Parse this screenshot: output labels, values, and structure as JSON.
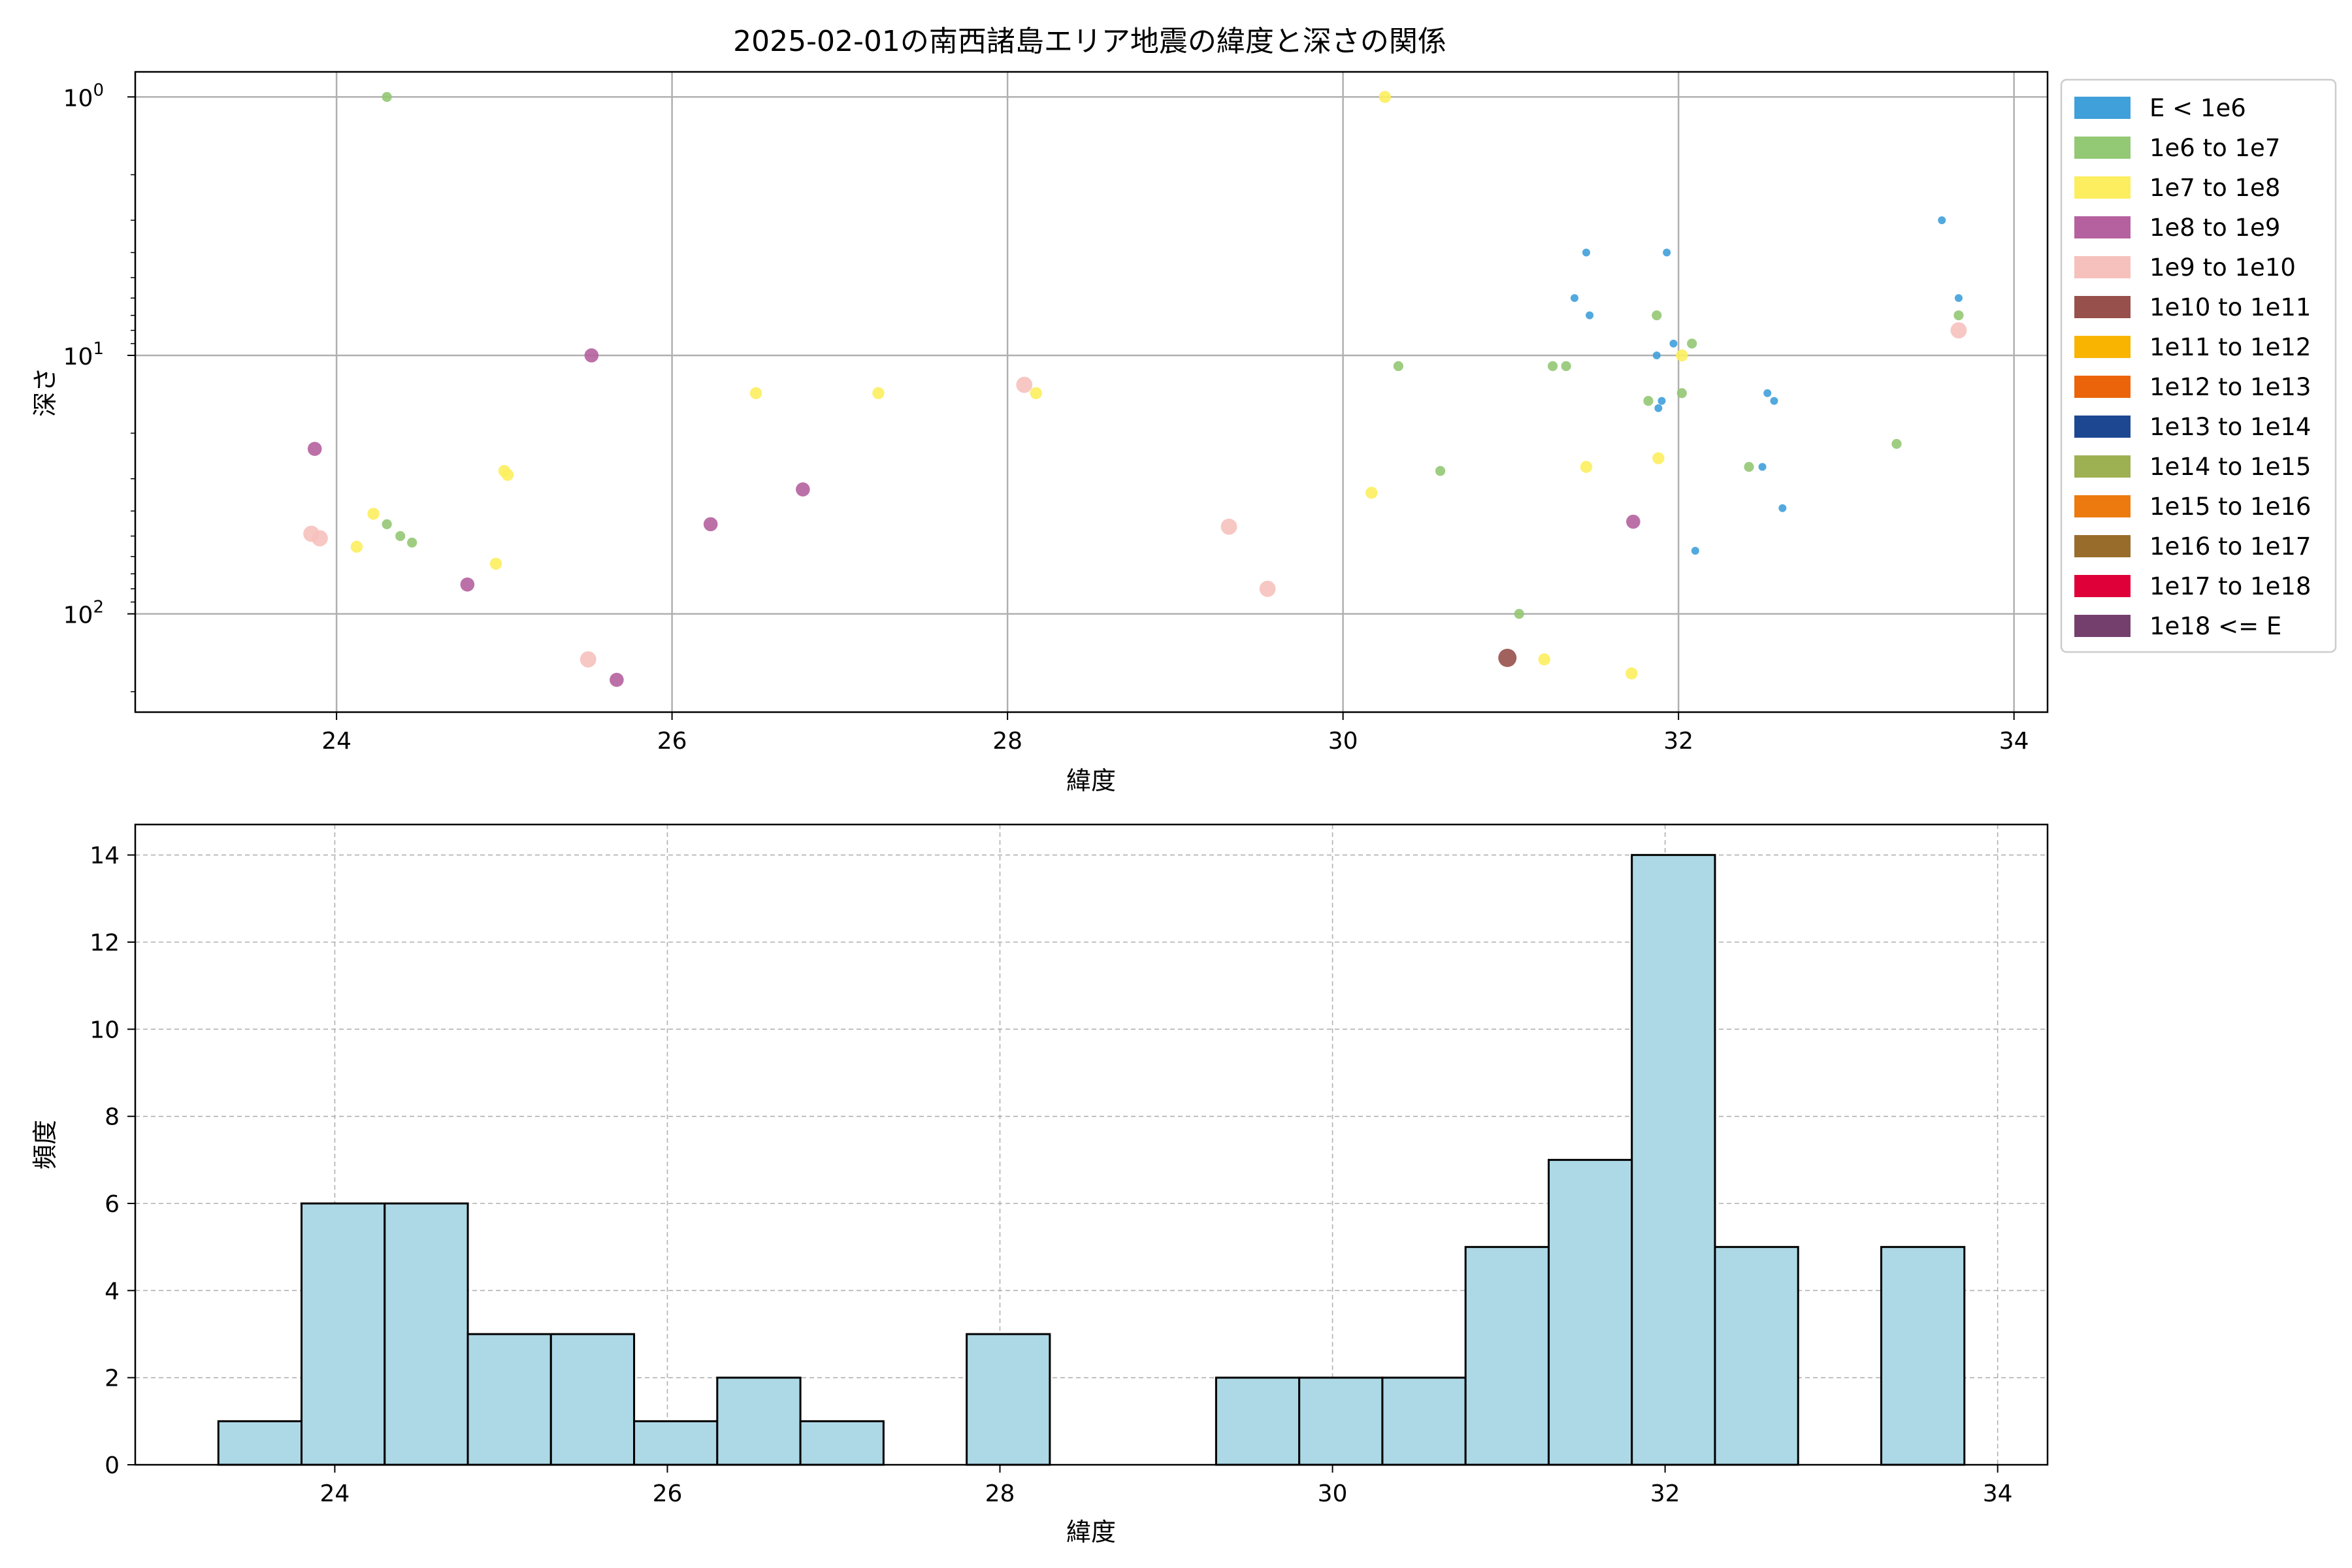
{
  "figure": {
    "title": "2025-02-01の南西諸島エリア地震の緯度と深さの関係"
  },
  "chart_data": [
    {
      "type": "scatter",
      "title": "2025-02-01の南西諸島エリア地震の緯度と深さの関係",
      "xlabel": "緯度",
      "ylabel": "深さ",
      "xlim": [
        22.8,
        34.2
      ],
      "ylim": [
        240,
        0.8
      ],
      "yscale": "log",
      "y_inverted": true,
      "grid": true,
      "xticks": [
        "24",
        "26",
        "28",
        "30",
        "32",
        "34"
      ],
      "yticks": [
        {
          "value": 1,
          "base": "10",
          "exp": "0"
        },
        {
          "value": 10,
          "base": "10",
          "exp": "1"
        },
        {
          "value": 100,
          "base": "10",
          "exp": "2"
        }
      ],
      "legend": {
        "position": "outside-right",
        "entries": [
          {
            "label": "E < 1e6",
            "color": "#3fa0da"
          },
          {
            "label": "1e6 to 1e7",
            "color": "#93c874"
          },
          {
            "label": "1e7 to 1e8",
            "color": "#fcee5e"
          },
          {
            "label": "1e8 to 1e9",
            "color": "#b5619f"
          },
          {
            "label": "1e9 to 1e10",
            "color": "#f6c1bc"
          },
          {
            "label": "1e10 to 1e11",
            "color": "#97504b"
          },
          {
            "label": "1e11 to 1e12",
            "color": "#f8b400"
          },
          {
            "label": "1e12 to 1e13",
            "color": "#ec6409"
          },
          {
            "label": "1e13 to 1e14",
            "color": "#1d4891"
          },
          {
            "label": "1e14 to 1e15",
            "color": "#9db052"
          },
          {
            "label": "1e15 to 1e16",
            "color": "#ec7a0e"
          },
          {
            "label": "1e16 to 1e17",
            "color": "#986c2b"
          },
          {
            "label": "1e17 to 1e18",
            "color": "#df0039"
          },
          {
            "label": "1e18 <= E",
            "color": "#753f6d"
          }
        ]
      },
      "series": [
        {
          "class": 0,
          "points": [
            [
              31.45,
              4
            ],
            [
              31.38,
              6
            ],
            [
              31.47,
              7
            ],
            [
              31.93,
              4
            ],
            [
              31.97,
              9
            ],
            [
              31.87,
              10
            ],
            [
              31.9,
              15
            ],
            [
              31.88,
              16
            ],
            [
              32.53,
              14
            ],
            [
              32.57,
              15
            ],
            [
              32.5,
              27
            ],
            [
              32.62,
              39
            ],
            [
              32.1,
              57
            ],
            [
              33.57,
              3
            ],
            [
              33.67,
              6
            ]
          ]
        },
        {
          "class": 1,
          "points": [
            [
              24.3,
              1
            ],
            [
              24.3,
              45
            ],
            [
              24.38,
              50
            ],
            [
              24.45,
              53
            ],
            [
              30.33,
              11
            ],
            [
              30.58,
              28
            ],
            [
              31.25,
              11
            ],
            [
              31.33,
              11
            ],
            [
              31.87,
              7
            ],
            [
              32.08,
              9
            ],
            [
              32.02,
              14
            ],
            [
              31.82,
              15
            ],
            [
              31.05,
              100
            ],
            [
              32.42,
              27
            ],
            [
              33.3,
              22
            ],
            [
              33.67,
              7
            ]
          ]
        },
        {
          "class": 2,
          "points": [
            [
              30.25,
              1
            ],
            [
              24.22,
              41
            ],
            [
              24.12,
              55
            ],
            [
              24.95,
              64
            ],
            [
              25.0,
              28
            ],
            [
              25.02,
              29
            ],
            [
              26.5,
              14
            ],
            [
              27.23,
              14
            ],
            [
              28.17,
              14
            ],
            [
              30.17,
              34
            ],
            [
              31.45,
              27
            ],
            [
              31.88,
              25
            ],
            [
              32.02,
              10
            ],
            [
              31.2,
              150
            ],
            [
              31.72,
              170
            ]
          ]
        },
        {
          "class": 3,
          "points": [
            [
              23.87,
              23
            ],
            [
              24.78,
              77
            ],
            [
              25.52,
              10
            ],
            [
              25.67,
              180
            ],
            [
              26.23,
              45
            ],
            [
              26.78,
              33
            ],
            [
              31.73,
              44
            ]
          ]
        },
        {
          "class": 4,
          "points": [
            [
              23.85,
              49
            ],
            [
              23.9,
              51
            ],
            [
              25.5,
              150
            ],
            [
              28.1,
              13
            ],
            [
              29.32,
              46
            ],
            [
              29.55,
              80
            ],
            [
              33.67,
              8
            ]
          ]
        },
        {
          "class": 5,
          "points": [
            [
              30.98,
              148
            ]
          ]
        }
      ]
    },
    {
      "type": "bar",
      "subtype": "histogram",
      "xlabel": "緯度",
      "ylabel": "頻度",
      "xlim": [
        22.8,
        34.3
      ],
      "ylim": [
        0,
        14.7
      ],
      "grid": true,
      "bar_color": "#add8e6",
      "xticks": [
        "24",
        "26",
        "28",
        "30",
        "32",
        "34"
      ],
      "yticks": [
        "0",
        "2",
        "4",
        "6",
        "8",
        "10",
        "12",
        "14"
      ],
      "bins": [
        {
          "x0": 23.3,
          "x1": 23.8,
          "count": 1
        },
        {
          "x0": 23.8,
          "x1": 24.3,
          "count": 6
        },
        {
          "x0": 24.3,
          "x1": 24.8,
          "count": 6
        },
        {
          "x0": 24.8,
          "x1": 25.3,
          "count": 3
        },
        {
          "x0": 25.3,
          "x1": 25.8,
          "count": 3
        },
        {
          "x0": 25.8,
          "x1": 26.3,
          "count": 1
        },
        {
          "x0": 26.3,
          "x1": 26.8,
          "count": 2
        },
        {
          "x0": 26.8,
          "x1": 27.3,
          "count": 1
        },
        {
          "x0": 27.3,
          "x1": 27.8,
          "count": 0
        },
        {
          "x0": 27.8,
          "x1": 28.3,
          "count": 3
        },
        {
          "x0": 28.3,
          "x1": 28.8,
          "count": 0
        },
        {
          "x0": 28.8,
          "x1": 29.3,
          "count": 0
        },
        {
          "x0": 29.3,
          "x1": 29.8,
          "count": 2
        },
        {
          "x0": 29.8,
          "x1": 30.3,
          "count": 2
        },
        {
          "x0": 30.3,
          "x1": 30.8,
          "count": 2
        },
        {
          "x0": 30.8,
          "x1": 31.3,
          "count": 5
        },
        {
          "x0": 31.3,
          "x1": 31.8,
          "count": 7
        },
        {
          "x0": 31.8,
          "x1": 32.3,
          "count": 14
        },
        {
          "x0": 32.3,
          "x1": 32.8,
          "count": 5
        },
        {
          "x0": 32.8,
          "x1": 33.3,
          "count": 0
        },
        {
          "x0": 33.3,
          "x1": 33.8,
          "count": 5
        }
      ]
    }
  ]
}
